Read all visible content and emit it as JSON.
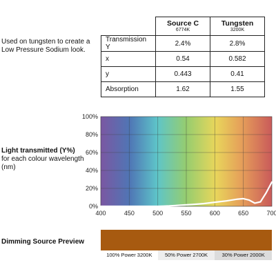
{
  "description": "Used on tungsten to create a Low Pressure Sodium look.",
  "specs": {
    "columns": [
      {
        "name": "Source C",
        "sub": "6774K"
      },
      {
        "name": "Tungsten",
        "sub": "3200K"
      }
    ],
    "rows": [
      {
        "label": "Transmission Y",
        "values": [
          "2.4%",
          "2.8%"
        ]
      },
      {
        "label": "x",
        "values": [
          "0.54",
          "0.582"
        ]
      },
      {
        "label": "y",
        "values": [
          "0.443",
          "0.41"
        ]
      },
      {
        "label": "Absorption",
        "values": [
          "1.62",
          "1.55"
        ]
      }
    ]
  },
  "chart_section": {
    "title": "Light transmitted (Y%)",
    "subtitle": "for each colour wavelength (nm)"
  },
  "chart_data": {
    "type": "line",
    "x_ticks": [
      400,
      450,
      500,
      550,
      600,
      650,
      700
    ],
    "y_ticks": [
      "0%",
      "20%",
      "40%",
      "60%",
      "80%",
      "100%"
    ],
    "xlim": [
      400,
      700
    ],
    "ylim": [
      0,
      100
    ],
    "grid": true,
    "line_color": "#ffffff",
    "series": [
      {
        "x": [
          400,
          450,
          500,
          510,
          520,
          540,
          560,
          580,
          600,
          620,
          640,
          650,
          660,
          670,
          680,
          690,
          700
        ],
        "y": [
          0,
          0,
          0,
          0.2,
          0.5,
          1.2,
          2,
          3,
          4.5,
          6,
          8,
          8.5,
          7,
          3.5,
          5,
          15,
          27
        ]
      }
    ]
  },
  "preview": {
    "title": "Dimming Source Preview",
    "color": "#a75a10",
    "labels": [
      "100% Power 3200K",
      "50% Power 2700K",
      "30% Power 2000K"
    ]
  }
}
